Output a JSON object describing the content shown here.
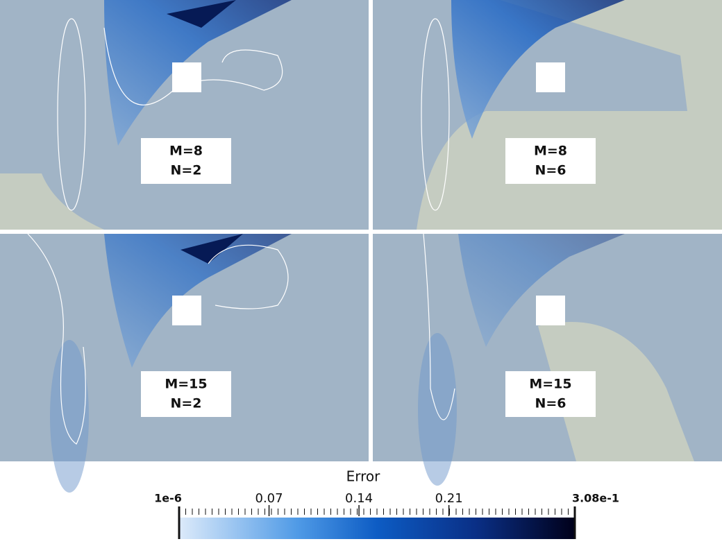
{
  "panels": [
    {
      "label_m": "M=8",
      "label_n": "N=2"
    },
    {
      "label_m": "M=8",
      "label_n": "N=6"
    },
    {
      "label_m": "M=15",
      "label_n": "N=2"
    },
    {
      "label_m": "M=15",
      "label_n": "N=6"
    }
  ],
  "colorbar": {
    "title": "Error",
    "lim": [
      1e-06,
      0.308
    ],
    "ticks": [
      {
        "value": 1e-06,
        "label": "1e-6"
      },
      0.07,
      0.14,
      0.21,
      {
        "value": 0.308,
        "label": "3.08e-1"
      }
    ]
  }
}
